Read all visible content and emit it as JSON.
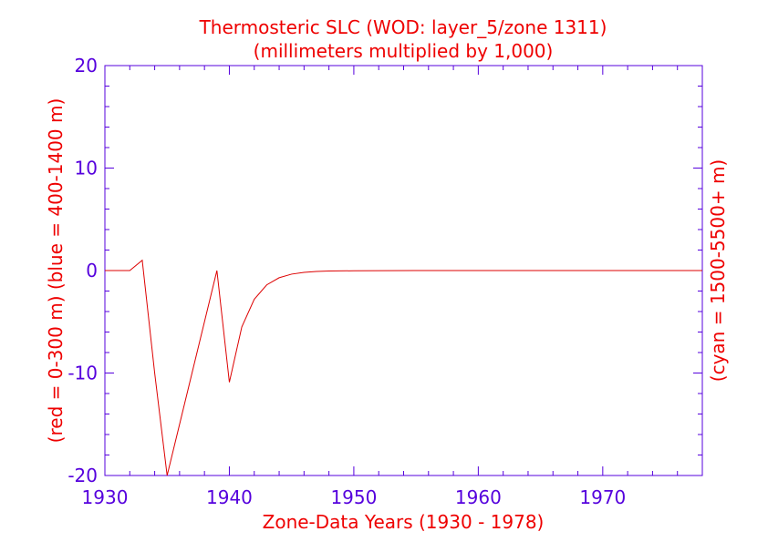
{
  "colors": {
    "title": "#ee0000",
    "axis": "#5500dd",
    "series": "#dd0000",
    "background": "#ffffff"
  },
  "chart_data": {
    "type": "line",
    "title": "Thermosteric SLC (WOD: layer_5/zone 1311)",
    "subtitle": "(millimeters multiplied by 1,000)",
    "xlabel": "Zone-Data Years (1930 - 1978)",
    "ylabel_left": "(red = 0-300 m)  (blue = 400-1400 m)",
    "ylabel_right": "(cyan = 1500-5500+ m)",
    "xlim": [
      1930,
      1978
    ],
    "ylim": [
      -20,
      20
    ],
    "x_ticks": [
      1930,
      1940,
      1950,
      1960,
      1970
    ],
    "x_tick_labels": [
      "1930",
      "1940",
      "1950",
      "1960",
      "1970"
    ],
    "y_ticks": [
      -20,
      -10,
      0,
      10,
      20
    ],
    "y_tick_labels": [
      "-20",
      "-10",
      "0",
      "10",
      "20"
    ],
    "grid": false,
    "series": [
      {
        "color": "#dd0000",
        "x": [
          1930,
          1931,
          1932,
          1933,
          1934,
          1935,
          1936,
          1937,
          1938,
          1939,
          1940,
          1941,
          1942,
          1943,
          1944,
          1945,
          1946,
          1947,
          1948,
          1950,
          1955,
          1960,
          1965,
          1970,
          1975,
          1978
        ],
        "y": [
          0,
          0,
          0,
          1,
          -10,
          -20.3,
          -15,
          -10,
          -5,
          0,
          -10.9,
          -5.5,
          -2.8,
          -1.4,
          -0.7,
          -0.35,
          -0.18,
          -0.09,
          -0.05,
          -0.02,
          0,
          0,
          0,
          0,
          0,
          0
        ]
      }
    ]
  }
}
